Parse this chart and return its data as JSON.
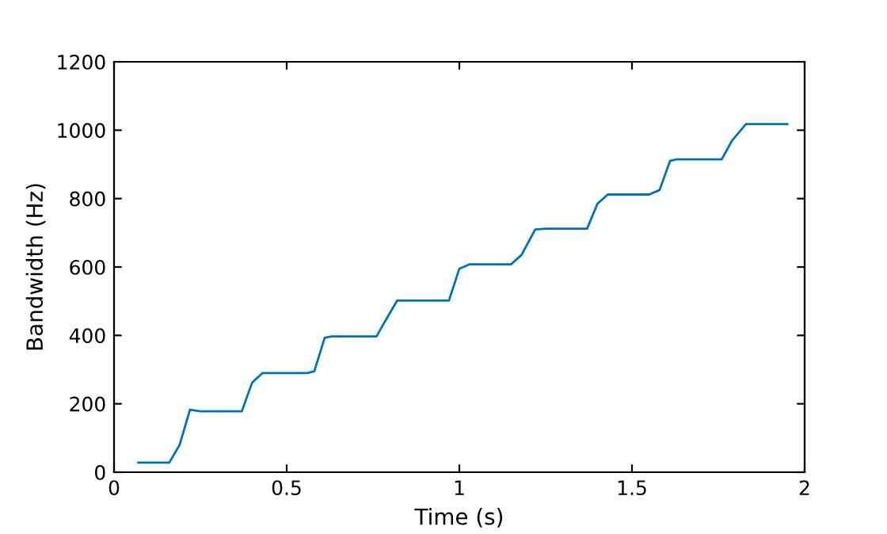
{
  "chart_data": {
    "type": "line",
    "xlabel": "Time (s)",
    "ylabel": "Bandwidth (Hz)",
    "series": [
      {
        "color": "#0072bd",
        "x": [
          0.07,
          0.16,
          0.19,
          0.22,
          0.25,
          0.37,
          0.4,
          0.43,
          0.56,
          0.58,
          0.61,
          0.63,
          0.76,
          0.79,
          0.82,
          0.97,
          1.0,
          1.03,
          1.15,
          1.18,
          1.22,
          1.25,
          1.37,
          1.4,
          1.43,
          1.55,
          1.58,
          1.61,
          1.63,
          1.76,
          1.79,
          1.83,
          1.95
        ],
        "values": [
          28,
          28,
          80,
          183,
          178,
          178,
          262,
          290,
          290,
          295,
          393,
          397,
          397,
          450,
          502,
          502,
          595,
          608,
          608,
          635,
          710,
          712,
          712,
          785,
          812,
          812,
          825,
          910,
          915,
          915,
          970,
          1018,
          1018
        ]
      }
    ],
    "xlim": [
      0,
      2
    ],
    "xticks": [
      0,
      0.5,
      1,
      1.5,
      2
    ],
    "ylim": [
      0,
      1200
    ],
    "yticks": [
      0,
      200,
      400,
      600,
      800,
      1000,
      1200
    ],
    "grid": false,
    "legend": false
  }
}
